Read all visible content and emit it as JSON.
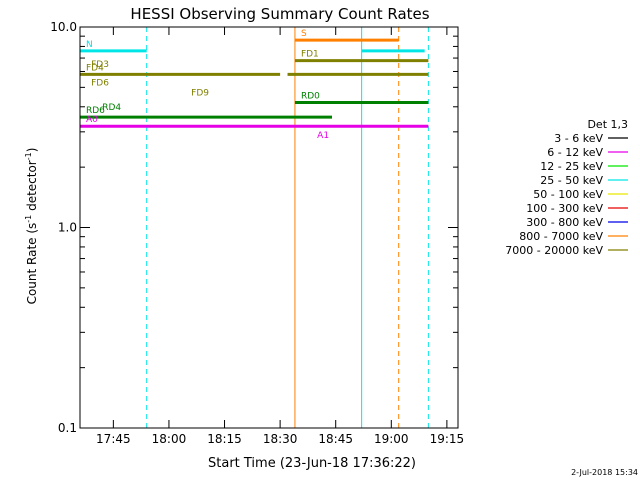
{
  "chart_data": {
    "type": "line",
    "title": "HESSI Observing Summary Count Rates",
    "xlabel": "Start Time (23-Jun-18 17:36:22)",
    "ylabel_main": "Count Rate (s",
    "ylabel_sup1": "-1",
    "ylabel_mid": " detector",
    "ylabel_sup2": "-1",
    "ylabel_end": ")",
    "y_log": true,
    "ylim": [
      0.1,
      10.0
    ],
    "xlim": [
      "17:36",
      "19:18"
    ],
    "x_ticks": [
      {
        "t": "17:45",
        "label": "17:45"
      },
      {
        "t": "18:00",
        "label": "18:00"
      },
      {
        "t": "18:15",
        "label": "18:15"
      },
      {
        "t": "18:30",
        "label": "18:30"
      },
      {
        "t": "18:45",
        "label": "18:45"
      },
      {
        "t": "19:00",
        "label": "19:00"
      },
      {
        "t": "19:15",
        "label": "19:15"
      }
    ],
    "y_ticks": [
      {
        "v": 0.1,
        "label": "0.1"
      },
      {
        "v": 1.0,
        "label": "1.0"
      },
      {
        "v": 10.0,
        "label": "10.0"
      }
    ],
    "legend_title": "Det 1,3",
    "legend": [
      {
        "label": "3 - 6 keV",
        "color": "#000000"
      },
      {
        "label": "6 - 12 keV",
        "color": "#e600e6"
      },
      {
        "label": "12 - 25 keV",
        "color": "#00e600"
      },
      {
        "label": "25 - 50 keV",
        "color": "#00e6e6"
      },
      {
        "label": "50 - 100 keV",
        "color": "#e6e600"
      },
      {
        "label": "100 - 300 keV",
        "color": "#e60000"
      },
      {
        "label": "300 - 800 keV",
        "color": "#0000e6"
      },
      {
        "label": "800 - 7000 keV",
        "color": "#ff8000"
      },
      {
        "label": "7000 - 20000 keV",
        "color": "#808000"
      }
    ],
    "flag_lines": [
      {
        "name": "night",
        "label": "N",
        "color": "#00e6e6",
        "y": 7.6,
        "segments": [
          [
            "17:36",
            "17:54"
          ],
          [
            "18:52",
            "19:09"
          ]
        ]
      },
      {
        "name": "saa",
        "label": "S",
        "color": "#ff8000",
        "y": 8.6,
        "segments": [
          [
            "18:34",
            "19:02"
          ]
        ]
      },
      {
        "name": "fd4",
        "label": "FD4",
        "color": "#808000",
        "y": 5.8,
        "segments": [
          [
            "17:36",
            "18:10"
          ],
          [
            "18:10",
            "18:30"
          ],
          [
            "18:32",
            "19:10"
          ]
        ]
      },
      {
        "name": "rd6",
        "label": "RD6",
        "color": "#008000",
        "y": 3.55,
        "segments": [
          [
            "17:36",
            "18:44"
          ]
        ]
      },
      {
        "name": "rd0",
        "label": "RD0",
        "color": "#008000",
        "y": 4.2,
        "segments": [
          [
            "18:34",
            "19:10"
          ]
        ]
      },
      {
        "name": "fd1",
        "label": "FD1",
        "color": "#808000",
        "y": 6.8,
        "segments": [
          [
            "18:34",
            "19:10"
          ]
        ]
      },
      {
        "name": "a0",
        "label": "A0",
        "color": "#e600e6",
        "y": 3.2,
        "segments": [
          [
            "17:36",
            "19:10"
          ]
        ]
      }
    ],
    "flag_label_extras": [
      {
        "label": "FD3",
        "color": "#808000",
        "t": "17:39",
        "y": 6.3
      },
      {
        "label": "FD6",
        "color": "#808000",
        "t": "17:39",
        "y": 5.1
      },
      {
        "label": "FD9",
        "color": "#808000",
        "t": "18:06",
        "y": 4.55
      },
      {
        "label": "RD4",
        "color": "#008000",
        "t": "17:42",
        "y": 3.85
      },
      {
        "label": "A1",
        "color": "#e600e6",
        "t": "18:40",
        "y": 2.8
      }
    ],
    "vlines": [
      {
        "t": "17:36",
        "color": "#00e6e6",
        "style": "solid"
      },
      {
        "t": "17:54",
        "color": "#00e6e6",
        "style": "dashed"
      },
      {
        "t": "18:34",
        "color": "#ff8000",
        "style": "solid"
      },
      {
        "t": "18:52",
        "color": "#00e6e6",
        "style": "solid"
      },
      {
        "t": "19:02",
        "color": "#ff8000",
        "style": "dashed"
      },
      {
        "t": "19:10",
        "color": "#00e6e6",
        "style": "dashed"
      }
    ]
  },
  "footer": {
    "date_stamp": "2-Jul-2018 15:34"
  }
}
